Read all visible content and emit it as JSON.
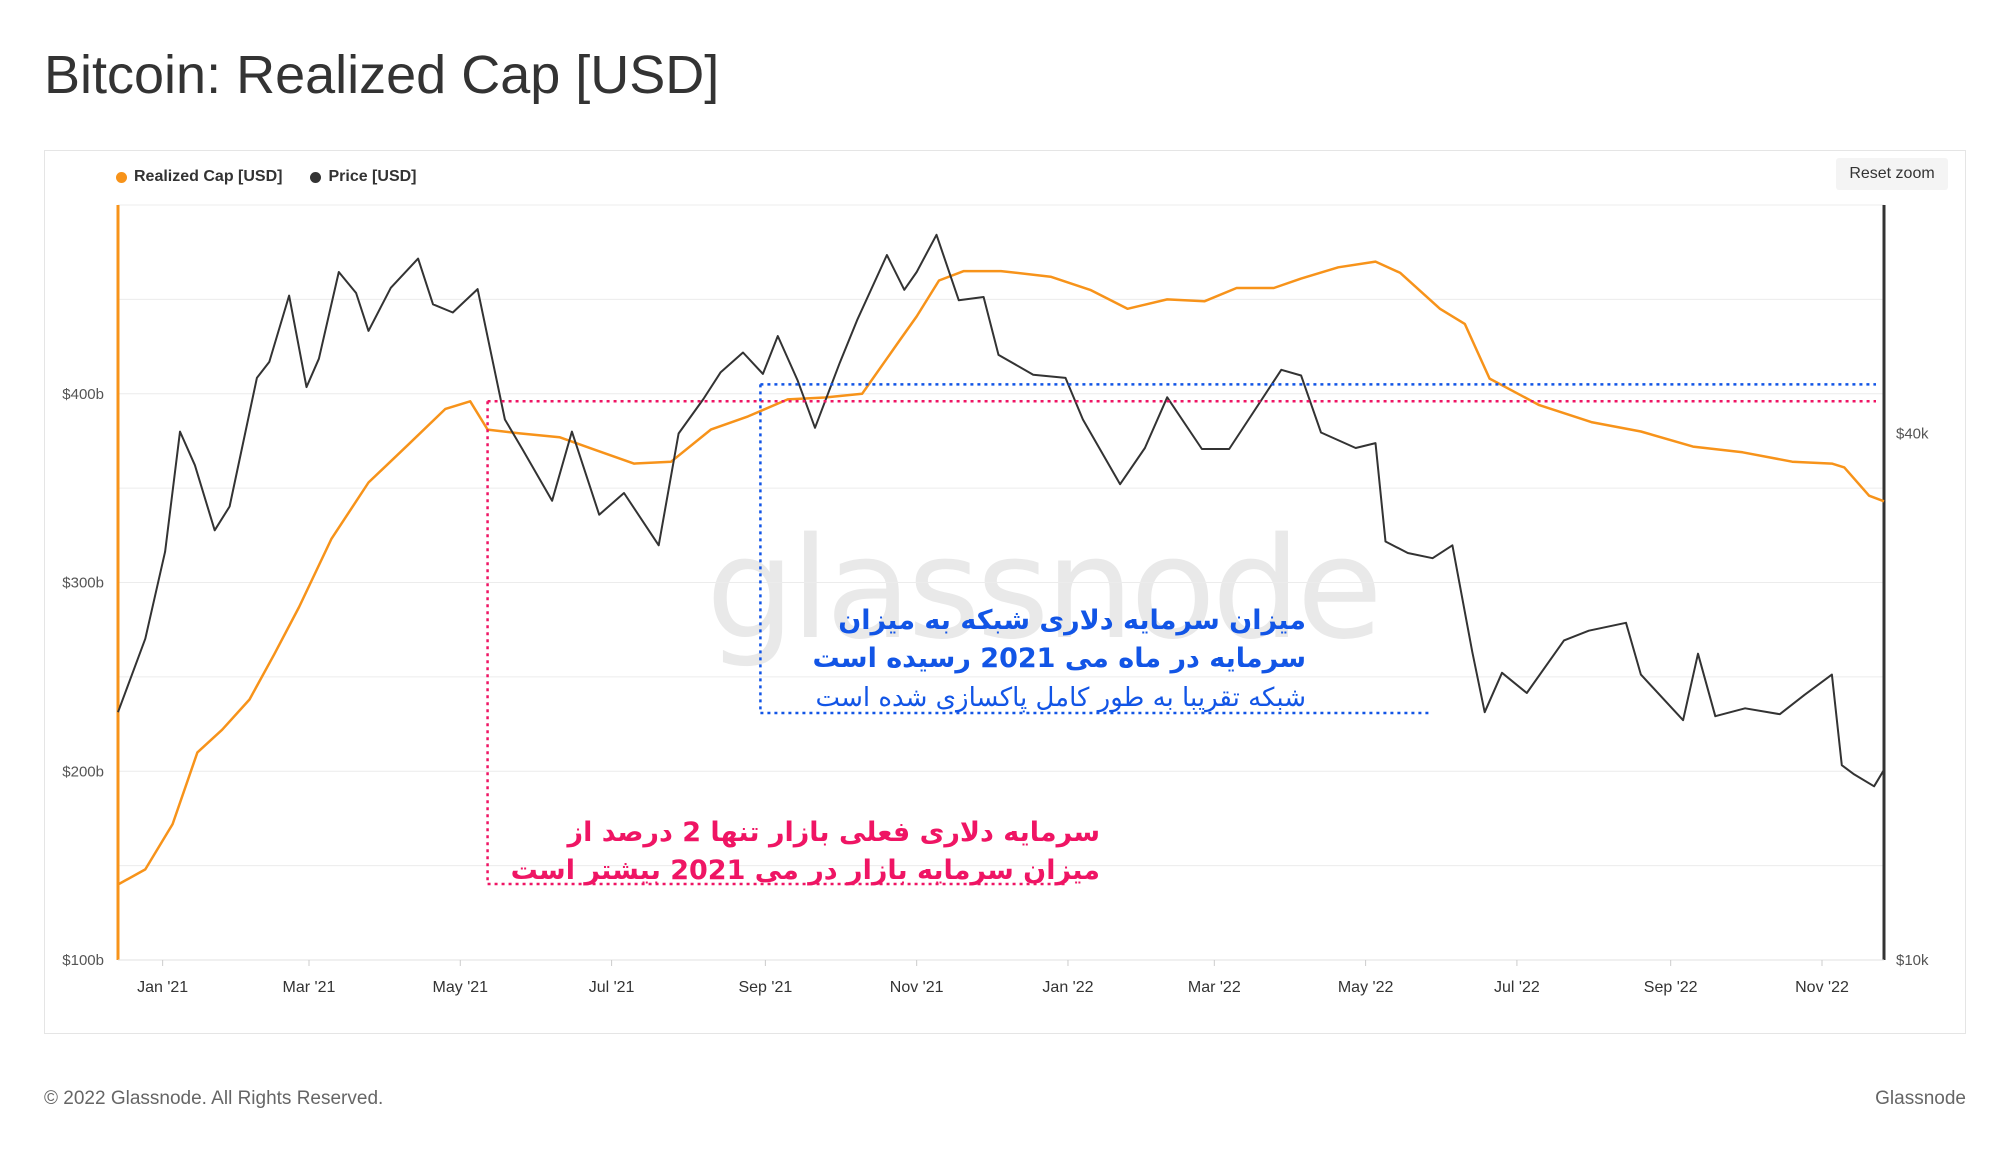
{
  "header": {
    "title": "Bitcoin: Realized Cap [USD]"
  },
  "toolbar": {
    "reset_zoom_label": "Reset zoom"
  },
  "legend": [
    {
      "label": "Realized Cap [USD]",
      "color": "#f7931a"
    },
    {
      "label": "Price [USD]",
      "color": "#333333"
    }
  ],
  "watermark": "glassnode",
  "annotations": {
    "blue": {
      "line1": "میزان سرمایه دلاری شبکه به میزان",
      "line2": "سرمایه در ماه می 2021 رسیده است",
      "line3": "شبکه تقریبا به طور کامل پاکسازی شده است",
      "color": "#1255e6"
    },
    "red": {
      "line1": "سرمایه دلاری فعلی بازار تنها 2 درصد از",
      "line2": "میزان سرمایه بازار در می 2021 بیشتر است",
      "color": "#ef1564"
    }
  },
  "footer": {
    "copyright": "© 2022 Glassnode. All Rights Reserved.",
    "brand": "Glassnode"
  },
  "chart_data": {
    "type": "line",
    "x_tick_labels": [
      "Jan '21",
      "Mar '21",
      "May '21",
      "Jul '21",
      "Sep '21",
      "Nov '21",
      "Jan '22",
      "Mar '22",
      "May '22",
      "Jul '22",
      "Sep '22",
      "Nov '22"
    ],
    "y_left": {
      "scale": "linear",
      "range": [
        100,
        500
      ],
      "unit": "b",
      "tick_labels": [
        "$100b",
        "$200b",
        "$300b",
        "$400b"
      ],
      "ticks": [
        100,
        200,
        300,
        400
      ]
    },
    "y_right": {
      "scale": "log",
      "range": [
        10000,
        73000
      ],
      "tick_labels": [
        "$10k",
        "$40k"
      ],
      "ticks": [
        10000,
        40000
      ]
    },
    "grid": true,
    "legend_position": "top-left",
    "series": [
      {
        "name": "Realized Cap [USD]",
        "axis": "left",
        "color": "#f7931a",
        "x": [
          "2020-12-14",
          "2020-12-25",
          "2021-01-05",
          "2021-01-15",
          "2021-01-25",
          "2021-02-05",
          "2021-02-15",
          "2021-02-25",
          "2021-03-10",
          "2021-03-25",
          "2021-04-10",
          "2021-04-25",
          "2021-05-05",
          "2021-05-12",
          "2021-05-25",
          "2021-06-10",
          "2021-06-25",
          "2021-07-10",
          "2021-07-25",
          "2021-08-10",
          "2021-08-25",
          "2021-09-10",
          "2021-09-25",
          "2021-10-10",
          "2021-10-25",
          "2021-11-01",
          "2021-11-10",
          "2021-11-20",
          "2021-12-05",
          "2021-12-25",
          "2022-01-10",
          "2022-01-25",
          "2022-02-10",
          "2022-02-25",
          "2022-03-10",
          "2022-03-25",
          "2022-04-05",
          "2022-04-20",
          "2022-05-05",
          "2022-05-15",
          "2022-05-31",
          "2022-06-10",
          "2022-06-20",
          "2022-07-10",
          "2022-07-31",
          "2022-08-20",
          "2022-09-10",
          "2022-09-30",
          "2022-10-20",
          "2022-11-05",
          "2022-11-10",
          "2022-11-20",
          "2022-11-26"
        ],
        "values": [
          140,
          148,
          172,
          210,
          222,
          238,
          262,
          287,
          323,
          353,
          373,
          392,
          396,
          381,
          379,
          377,
          370,
          363,
          364,
          381,
          388,
          397,
          398,
          400,
          428,
          441,
          460,
          465,
          465,
          462,
          455,
          445,
          450,
          449,
          456,
          456,
          461,
          467,
          470,
          464,
          445,
          437,
          408,
          394,
          385,
          380,
          372,
          369,
          364,
          363,
          361,
          346,
          343
        ]
      },
      {
        "name": "Price [USD]",
        "axis": "right",
        "color": "#333333",
        "x": [
          "2020-12-14",
          "2020-12-25",
          "2021-01-02",
          "2021-01-08",
          "2021-01-14",
          "2021-01-22",
          "2021-01-28",
          "2021-02-08",
          "2021-02-13",
          "2021-02-21",
          "2021-02-28",
          "2021-03-05",
          "2021-03-13",
          "2021-03-20",
          "2021-03-25",
          "2021-04-03",
          "2021-04-14",
          "2021-04-20",
          "2021-04-28",
          "2021-05-08",
          "2021-05-19",
          "2021-05-26",
          "2021-06-07",
          "2021-06-15",
          "2021-06-26",
          "2021-07-06",
          "2021-07-20",
          "2021-07-28",
          "2021-08-07",
          "2021-08-14",
          "2021-08-23",
          "2021-08-31",
          "2021-09-06",
          "2021-09-14",
          "2021-09-21",
          "2021-10-01",
          "2021-10-08",
          "2021-10-20",
          "2021-10-27",
          "2021-11-01",
          "2021-11-09",
          "2021-11-18",
          "2021-11-28",
          "2021-12-04",
          "2021-12-18",
          "2021-12-31",
          "2022-01-07",
          "2022-01-22",
          "2022-02-01",
          "2022-02-10",
          "2022-02-24",
          "2022-03-07",
          "2022-03-28",
          "2022-04-05",
          "2022-04-13",
          "2022-04-27",
          "2022-05-05",
          "2022-05-09",
          "2022-05-18",
          "2022-05-28",
          "2022-06-05",
          "2022-06-13",
          "2022-06-18",
          "2022-06-25",
          "2022-07-05",
          "2022-07-20",
          "2022-07-30",
          "2022-08-14",
          "2022-08-20",
          "2022-09-06",
          "2022-09-12",
          "2022-09-19",
          "2022-10-01",
          "2022-10-15",
          "2022-10-25",
          "2022-11-05",
          "2022-11-09",
          "2022-11-14",
          "2022-11-22",
          "2022-11-26"
        ],
        "values": [
          19200,
          23300,
          29300,
          40200,
          36800,
          31000,
          33000,
          46300,
          48300,
          57500,
          45200,
          48700,
          61200,
          57900,
          52400,
          58700,
          63400,
          56200,
          55000,
          58500,
          41500,
          38400,
          33500,
          40200,
          32300,
          34200,
          29800,
          40000,
          43800,
          47000,
          49500,
          46800,
          51700,
          46000,
          40600,
          48200,
          53900,
          64000,
          58400,
          61200,
          67500,
          56800,
          57300,
          49200,
          46700,
          46300,
          41500,
          35000,
          38500,
          44000,
          38400,
          38400,
          47300,
          46600,
          40100,
          38500,
          39000,
          30100,
          29200,
          28800,
          29800,
          22500,
          19200,
          21300,
          20200,
          23200,
          23800,
          24300,
          21200,
          18800,
          22400,
          19000,
          19400,
          19100,
          20100,
          21200,
          16700,
          16300,
          15800,
          16500
        ]
      }
    ],
    "reference_lines": [
      {
        "value": 396,
        "axis": "left",
        "color": "#ef1564",
        "style": "dotted",
        "from_x": "2021-05-12"
      },
      {
        "value": 405,
        "axis": "left",
        "color": "#1255e6",
        "style": "dotted",
        "from_x": "2021-08-30"
      }
    ]
  }
}
